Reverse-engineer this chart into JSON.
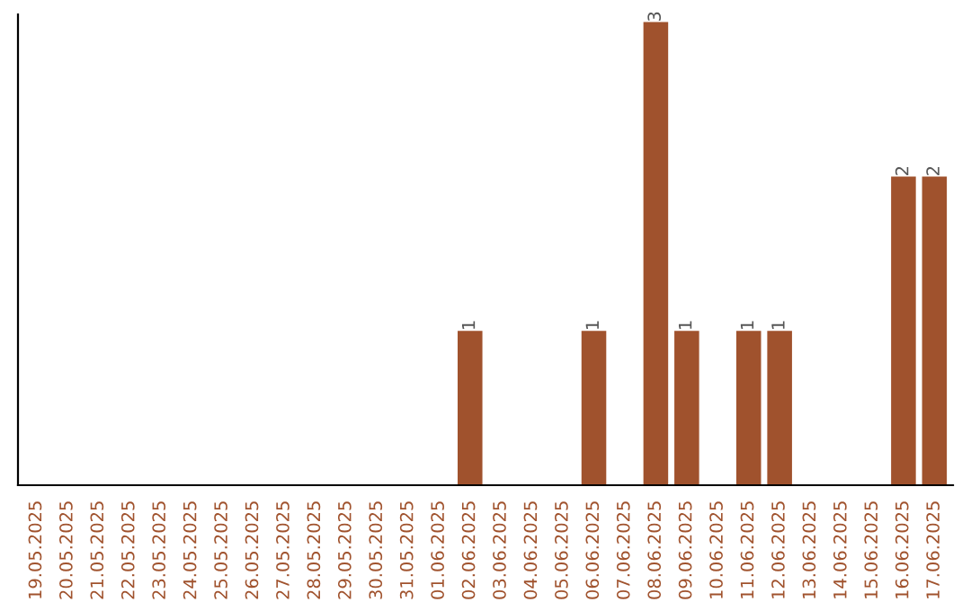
{
  "chart_data": {
    "type": "bar",
    "categories": [
      "19.05.2025",
      "20.05.2025",
      "21.05.2025",
      "22.05.2025",
      "23.05.2025",
      "24.05.2025",
      "25.05.2025",
      "26.05.2025",
      "27.05.2025",
      "28.05.2025",
      "29.05.2025",
      "30.05.2025",
      "31.05.2025",
      "01.06.2025",
      "02.06.2025",
      "03.06.2025",
      "04.06.2025",
      "05.06.2025",
      "06.06.2025",
      "07.06.2025",
      "08.06.2025",
      "09.06.2025",
      "10.06.2025",
      "11.06.2025",
      "12.06.2025",
      "13.06.2025",
      "14.06.2025",
      "15.06.2025",
      "16.06.2025",
      "17.06.2025"
    ],
    "values": [
      null,
      null,
      null,
      null,
      null,
      null,
      null,
      null,
      null,
      null,
      null,
      null,
      null,
      null,
      1,
      null,
      null,
      null,
      1,
      null,
      3,
      1,
      null,
      1,
      1,
      null,
      null,
      null,
      2,
      2
    ],
    "data_labels": true,
    "color": "#a0522d",
    "ylim": [
      0,
      3.05
    ],
    "tick_labels": "x",
    "grid": false,
    "legend": false
  }
}
